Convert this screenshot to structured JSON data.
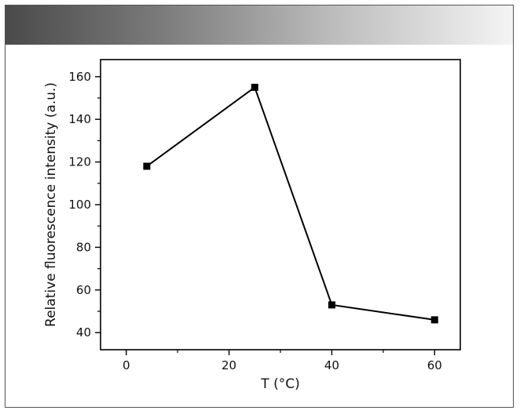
{
  "chart_data": {
    "type": "line",
    "title": "",
    "xlabel": "T (°C)",
    "ylabel": "Relative fluorescence intensity (a.u.)",
    "xlim": [
      -5,
      65
    ],
    "ylim": [
      32,
      168
    ],
    "x_ticks": [
      0,
      20,
      40,
      60
    ],
    "y_ticks": [
      40,
      60,
      80,
      100,
      120,
      140,
      160
    ],
    "grid": false,
    "legend": "none",
    "colors": {
      "line": "#000000",
      "marker": "#000000",
      "axis": "#000000"
    },
    "marker": "square",
    "series": [
      {
        "x": [
          4,
          25,
          40,
          60
        ],
        "y": [
          118,
          155,
          53,
          46
        ]
      }
    ]
  }
}
